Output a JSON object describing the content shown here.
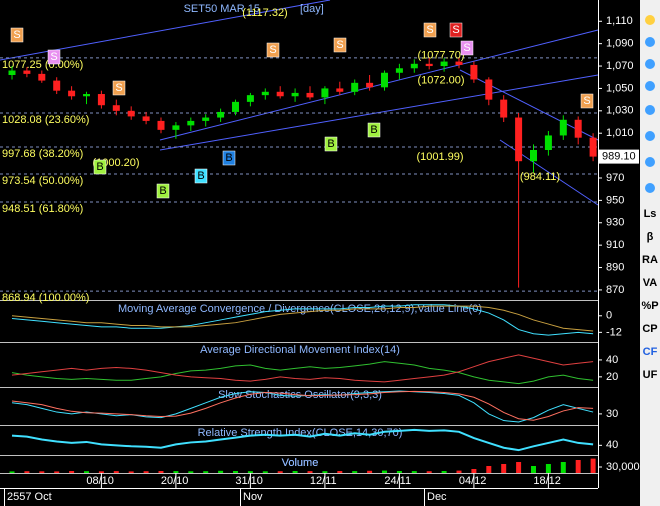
{
  "chart_data": [
    {
      "type": "candlestick",
      "title": "SET50 MAR 15",
      "interval": "[day]",
      "categories": [
        null,
        null,
        null,
        null,
        null,
        null,
        "08/10",
        null,
        null,
        null,
        null,
        "20/10",
        null,
        null,
        null,
        null,
        "31/10",
        null,
        null,
        null,
        null,
        "12/11",
        null,
        null,
        null,
        null,
        "24/11",
        null,
        null,
        null,
        null,
        "04/12",
        null,
        null,
        null,
        null,
        "18/12",
        null,
        null,
        null
      ],
      "x_groups": [
        "2557 Oct",
        "Nov",
        "Dec"
      ],
      "open": [
        1062,
        1066,
        1063,
        1057,
        1048,
        1043,
        1045,
        1035,
        1030,
        1025,
        1021,
        1013,
        1017,
        1021,
        1024,
        1029,
        1038,
        1044,
        1047,
        1043,
        1046,
        1042,
        1050,
        1047,
        1055,
        1051,
        1064,
        1068,
        1072,
        1070,
        1074,
        1071,
        1058,
        1040,
        1024,
        985,
        995,
        1008,
        1022,
        1006
      ],
      "high": [
        1070,
        1069,
        1066,
        1060,
        1052,
        1047,
        1048,
        1040,
        1034,
        1029,
        1024,
        1020,
        1024,
        1027,
        1032,
        1040,
        1046,
        1050,
        1052,
        1050,
        1052,
        1052,
        1056,
        1058,
        1062,
        1066,
        1072,
        1076,
        1078,
        1077,
        1078,
        1074,
        1060,
        1044,
        1028,
        1000,
        1012,
        1026,
        1025,
        1010
      ],
      "low": [
        1058,
        1060,
        1055,
        1045,
        1040,
        1036,
        1032,
        1026,
        1022,
        1018,
        1010,
        1005,
        1012,
        1016,
        1020,
        1026,
        1034,
        1040,
        1041,
        1038,
        1040,
        1036,
        1044,
        1044,
        1048,
        1048,
        1058,
        1064,
        1067,
        1065,
        1068,
        1055,
        1035,
        1020,
        872,
        975,
        990,
        1004,
        1000,
        985
      ],
      "close": [
        1066,
        1063,
        1057,
        1048,
        1043,
        1045,
        1035,
        1030,
        1025,
        1021,
        1013,
        1017,
        1021,
        1024,
        1029,
        1038,
        1044,
        1047,
        1043,
        1046,
        1042,
        1050,
        1047,
        1055,
        1051,
        1064,
        1068,
        1072,
        1070,
        1074,
        1071,
        1058,
        1040,
        1024,
        985,
        995,
        1008,
        1022,
        1006,
        989.1
      ],
      "up_color": "#00e000",
      "down_color": "#ff2020",
      "ylim": [
        861,
        1129
      ],
      "yticks": [
        {
          "value": 1110,
          "label": "1,110"
        },
        {
          "value": 1090,
          "label": "1,090"
        },
        {
          "value": 1070,
          "label": "1,070"
        },
        {
          "value": 1050,
          "label": "1,050"
        },
        {
          "value": 1030,
          "label": "1,030"
        },
        {
          "value": 1010,
          "label": "1,010"
        },
        970,
        950,
        930,
        910,
        890,
        870
      ],
      "fib_levels": [
        {
          "value": 1077.25,
          "label": "1077.25 (0.00%)"
        },
        {
          "value": 1028.08,
          "label": "1028.08 (23.60%)"
        },
        {
          "value": 997.68,
          "label": "997.68 (38.20%)"
        },
        {
          "value": 973.54,
          "label": "973.54 (50.00%)"
        },
        {
          "value": 948.51,
          "label": "948.51 (61.80%)"
        },
        {
          "value": 868.94,
          "label": "868.94 (100.00%)"
        }
      ],
      "annotations": [
        {
          "value": 1117.32,
          "label": "(1117.32)"
        },
        {
          "value": 1077.7,
          "label": "(1077.70)"
        },
        {
          "value": 1072,
          "label": "(1072.00)"
        },
        {
          "value": 1000.2,
          "label": "(1000.20)"
        },
        {
          "value": 1001.99,
          "label": "(1001.99)"
        },
        {
          "value": 984.11,
          "label": "(984.11)"
        }
      ],
      "last_price": {
        "value": 989.1,
        "label": "989.10"
      },
      "signals": [
        {
          "text": "S",
          "color": "#f0a050"
        },
        {
          "text": "S",
          "color": "#e890f0"
        },
        {
          "text": "S",
          "color": "#f0a050"
        },
        {
          "text": "S",
          "color": "#f0a050"
        },
        {
          "text": "S",
          "color": "#f0a050"
        },
        {
          "text": "S",
          "color": "#f0a050"
        },
        {
          "text": "S",
          "color": "#e02020"
        },
        {
          "text": "S",
          "color": "#e890f0"
        },
        {
          "text": "S",
          "color": "#f0a050"
        },
        {
          "text": "B",
          "color": "#a0f040"
        },
        {
          "text": "B",
          "color": "#a0f040"
        },
        {
          "text": "B",
          "color": "#40e0ff"
        },
        {
          "text": "B",
          "color": "#2080e0"
        },
        {
          "text": "B",
          "color": "#a0f040"
        },
        {
          "text": "B",
          "color": "#a0f040"
        }
      ],
      "toolbar": [
        "Ls",
        "β",
        "RA",
        "VA",
        "%P",
        "CP",
        "CF",
        "UF"
      ]
    },
    {
      "type": "line",
      "title": "Moving Average Convergence / Divergence(CLOSE,26,12,9),Value Line(0)",
      "ylim": [
        -19,
        10
      ],
      "yticks": [
        0,
        -12
      ],
      "series": [
        {
          "name": "MACD",
          "color": "#40e0ff",
          "values": [
            -2,
            -3,
            -4,
            -5,
            -6,
            -7,
            -8,
            -8,
            -9,
            -9,
            -9,
            -8,
            -7,
            -5,
            -3,
            -1,
            1,
            3,
            4,
            5,
            5,
            5,
            5,
            6,
            6,
            7,
            7,
            8,
            8,
            8,
            7,
            5,
            2,
            -3,
            -10,
            -13,
            -14,
            -13,
            -12,
            -13
          ]
        },
        {
          "name": "Signal",
          "color": "#c8a040",
          "values": [
            0,
            -1,
            -2,
            -3,
            -4,
            -5,
            -5,
            -6,
            -7,
            -7,
            -8,
            -8,
            -8,
            -7,
            -6,
            -5,
            -3,
            -1,
            1,
            2,
            3,
            4,
            4,
            5,
            5,
            5,
            6,
            6,
            7,
            7,
            7,
            7,
            6,
            4,
            1,
            -3,
            -6,
            -9,
            -10,
            -11
          ]
        }
      ]
    },
    {
      "type": "line",
      "title": "Average Directional Movement Index(14)",
      "ylim": [
        8,
        60
      ],
      "yticks": [
        40,
        20
      ],
      "series": [
        {
          "name": "+DI",
          "color": "#30c030",
          "values": [
            25,
            22,
            20,
            18,
            17,
            18,
            17,
            16,
            16,
            18,
            20,
            24,
            27,
            28,
            30,
            33,
            34,
            30,
            28,
            30,
            32,
            30,
            31,
            33,
            35,
            38,
            36,
            34,
            30,
            28,
            25,
            20,
            16,
            14,
            12,
            15,
            20,
            22,
            18,
            16
          ]
        },
        {
          "name": "-DI",
          "color": "#e04040",
          "values": [
            22,
            24,
            26,
            28,
            30,
            28,
            30,
            31,
            30,
            28,
            25,
            22,
            20,
            19,
            18,
            16,
            15,
            17,
            20,
            18,
            17,
            19,
            18,
            16,
            15,
            14,
            16,
            18,
            20,
            22,
            26,
            32,
            38,
            42,
            46,
            42,
            38,
            34,
            36,
            38
          ]
        }
      ]
    },
    {
      "type": "line",
      "title": "Slow Stochastics Oscillator(9,3,3)",
      "ylim": [
        0,
        100
      ],
      "yticks": [
        30
      ],
      "series": [
        {
          "name": "%K",
          "color": "#40e0ff",
          "values": [
            60,
            55,
            45,
            35,
            30,
            35,
            30,
            25,
            28,
            22,
            20,
            30,
            45,
            60,
            75,
            85,
            90,
            88,
            80,
            78,
            80,
            82,
            80,
            85,
            88,
            90,
            92,
            90,
            88,
            85,
            80,
            60,
            30,
            12,
            8,
            20,
            40,
            55,
            45,
            35
          ]
        },
        {
          "name": "%D",
          "color": "#ff7060",
          "values": [
            65,
            60,
            55,
            45,
            37,
            33,
            32,
            30,
            28,
            25,
            23,
            24,
            32,
            45,
            60,
            73,
            83,
            88,
            86,
            82,
            79,
            80,
            81,
            82,
            84,
            88,
            90,
            91,
            90,
            88,
            84,
            75,
            57,
            34,
            17,
            13,
            23,
            38,
            47,
            45
          ]
        }
      ]
    },
    {
      "type": "line",
      "title": "Relative Strength Index(CLOSE,14,30,70)",
      "ylim": [
        20,
        80
      ],
      "yticks": [
        40
      ],
      "series": [
        {
          "name": "RSI",
          "color": "#40e0ff",
          "values": [
            60,
            58,
            52,
            48,
            45,
            47,
            42,
            40,
            38,
            37,
            35,
            42,
            46,
            48,
            52,
            56,
            60,
            62,
            60,
            62,
            58,
            64,
            60,
            65,
            62,
            68,
            70,
            72,
            70,
            71,
            68,
            55,
            45,
            35,
            30,
            38,
            45,
            52,
            45,
            42
          ]
        }
      ]
    },
    {
      "type": "bar",
      "title": "Volume",
      "ylim": [
        0,
        85000
      ],
      "yticks": [
        {
          "value": 30000,
          "label": "30,000"
        }
      ],
      "values": [
        8000,
        9000,
        8500,
        8000,
        10000,
        9000,
        8500,
        9500,
        8000,
        9000,
        10000,
        9500,
        8500,
        9000,
        11000,
        10000,
        9000,
        8500,
        9000,
        10000,
        9500,
        9000,
        10000,
        9500,
        11000,
        12000,
        10000,
        9500,
        9000,
        10000,
        12000,
        20000,
        35000,
        45000,
        55000,
        35000,
        45000,
        55000,
        65000,
        72000
      ]
    }
  ]
}
